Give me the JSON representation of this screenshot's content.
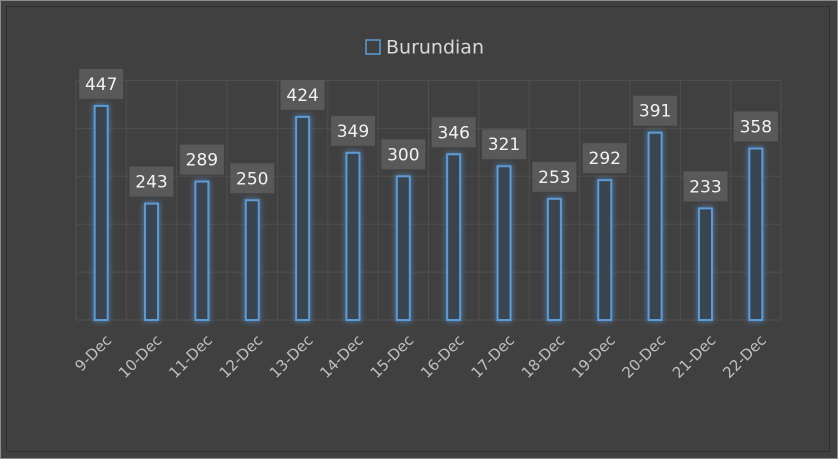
{
  "chart_data": {
    "type": "bar",
    "categories": [
      "9-Dec",
      "10-Dec",
      "11-Dec",
      "12-Dec",
      "13-Dec",
      "14-Dec",
      "15-Dec",
      "16-Dec",
      "17-Dec",
      "18-Dec",
      "19-Dec",
      "20-Dec",
      "21-Dec",
      "22-Dec"
    ],
    "series": [
      {
        "name": "Burundian",
        "color": "#5b9bd5",
        "values": [
          447,
          243,
          289,
          250,
          424,
          349,
          300,
          346,
          321,
          253,
          292,
          391,
          233,
          358
        ]
      }
    ],
    "ylim": [
      0,
      500
    ],
    "yticks": [
      0,
      100,
      200,
      300,
      400,
      500
    ],
    "grid": true,
    "legend": "top"
  }
}
